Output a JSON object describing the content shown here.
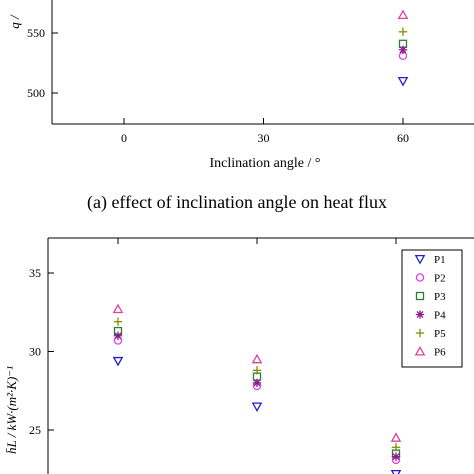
{
  "chart_data": [
    {
      "type": "scatter",
      "title": "",
      "caption": "(a) effect of inclination angle on heat flux",
      "xlabel": "Inclination angle / °",
      "ylabel": "q /",
      "x_ticks": [
        "0",
        "30",
        "60"
      ],
      "y_ticks": [
        "500",
        "550"
      ],
      "ylim": [
        480,
        600
      ],
      "x_positions": [
        0,
        30,
        60
      ],
      "series": [
        {
          "name": "P1",
          "marker": "triangle-down",
          "color": "#1f1fd0",
          "points": [
            {
              "x": 60,
              "y": 510
            }
          ]
        },
        {
          "name": "P2",
          "marker": "circle",
          "color": "#e040e0",
          "points": [
            {
              "x": 60,
              "y": 531
            }
          ]
        },
        {
          "name": "P3",
          "marker": "square",
          "color": "#2e7d32",
          "points": [
            {
              "x": 60,
              "y": 541
            }
          ]
        },
        {
          "name": "P4",
          "marker": "asterisk",
          "color": "#8b1a8b",
          "points": [
            {
              "x": 60,
              "y": 536
            }
          ]
        },
        {
          "name": "P5",
          "marker": "plus",
          "color": "#8a8a00",
          "points": [
            {
              "x": 60,
              "y": 551
            }
          ]
        },
        {
          "name": "P6",
          "marker": "triangle-up",
          "color": "#e0409a",
          "points": [
            {
              "x": 60,
              "y": 565
            }
          ]
        }
      ]
    },
    {
      "type": "scatter",
      "title": "",
      "xlabel": "",
      "ylabel": "h̄L / kW·(m²·K)⁻¹",
      "x_positions": [
        0,
        30,
        60
      ],
      "y_ticks": [
        "25",
        "30",
        "35"
      ],
      "ylim": [
        22,
        38.5
      ],
      "legend": [
        "P1",
        "P2",
        "P3",
        "P4",
        "P5",
        "P6"
      ],
      "legend_position": "top-right",
      "series": [
        {
          "name": "P1",
          "marker": "triangle-down",
          "color": "#1f1fd0",
          "points": [
            {
              "x": 0,
              "y": 29.4
            },
            {
              "x": 30,
              "y": 26.5
            },
            {
              "x": 60,
              "y": 22.2
            }
          ]
        },
        {
          "name": "P2",
          "marker": "circle",
          "color": "#e040e0",
          "points": [
            {
              "x": 0,
              "y": 30.7
            },
            {
              "x": 30,
              "y": 27.8
            },
            {
              "x": 60,
              "y": 23.1
            }
          ]
        },
        {
          "name": "P3",
          "marker": "square",
          "color": "#2e7d32",
          "points": [
            {
              "x": 0,
              "y": 31.3
            },
            {
              "x": 30,
              "y": 28.4
            },
            {
              "x": 60,
              "y": 23.5
            }
          ]
        },
        {
          "name": "P4",
          "marker": "asterisk",
          "color": "#8b1a8b",
          "points": [
            {
              "x": 0,
              "y": 31.0
            },
            {
              "x": 30,
              "y": 28.0
            },
            {
              "x": 60,
              "y": 23.3
            }
          ]
        },
        {
          "name": "P5",
          "marker": "plus",
          "color": "#8a8a00",
          "points": [
            {
              "x": 0,
              "y": 31.9
            },
            {
              "x": 30,
              "y": 28.8
            },
            {
              "x": 60,
              "y": 23.9
            }
          ]
        },
        {
          "name": "P6",
          "marker": "triangle-up",
          "color": "#e0409a",
          "points": [
            {
              "x": 0,
              "y": 32.7
            },
            {
              "x": 30,
              "y": 29.5
            },
            {
              "x": 60,
              "y": 24.5
            }
          ]
        }
      ]
    }
  ]
}
